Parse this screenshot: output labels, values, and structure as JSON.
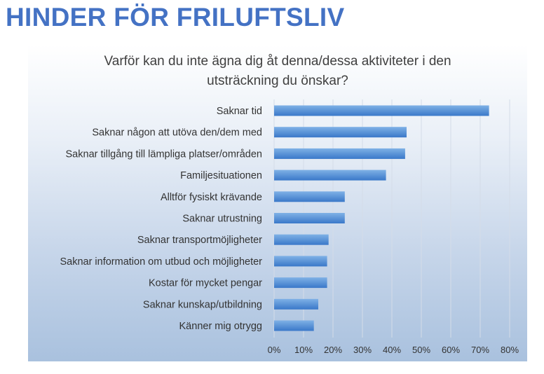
{
  "page": {
    "title": "HINDER FÖR FRILUFTSLIV"
  },
  "colors": {
    "title": "#4472c4",
    "bar_top": "#7fb1e6",
    "bar_bottom": "#3a78c9"
  },
  "chart_data": {
    "type": "bar",
    "orientation": "horizontal",
    "title_lines": [
      "Varför kan du inte ägna dig åt denna/dessa aktiviteter i den",
      "utsträckning du önskar?"
    ],
    "categories": [
      "Saknar tid",
      "Saknar någon att utöva den/dem med",
      "Saknar tillgång till lämpliga platser/områden",
      "Familjesituationen",
      "Alltför fysiskt krävande",
      "Saknar utrustning",
      "Saknar transportmöjligheter",
      "Saknar information om utbud och möjligheter",
      "Kostar för mycket pengar",
      "Saknar kunskap/utbildning",
      "Känner mig otrygg"
    ],
    "values": [
      73,
      45,
      44.5,
      38,
      24,
      24,
      18.5,
      18,
      18,
      15,
      13.5
    ],
    "value_unit": "%",
    "xlim": [
      0,
      80
    ],
    "x_ticks": [
      0,
      10,
      20,
      30,
      40,
      50,
      60,
      70,
      80
    ],
    "x_tick_labels": [
      "0%",
      "10%",
      "20%",
      "30%",
      "40%",
      "50%",
      "60%",
      "70%",
      "80%"
    ],
    "grid": "vertical",
    "legend": "none"
  }
}
